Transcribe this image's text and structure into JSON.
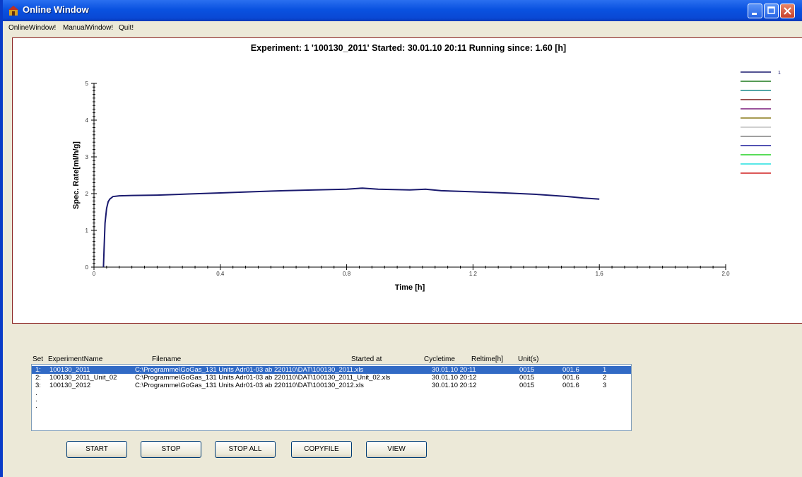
{
  "window": {
    "title": "Online Window"
  },
  "menu": [
    "OnlineWindow!",
    "ManualWindow!",
    "Quit!"
  ],
  "colors": {
    "titlebar": "#0a52e0",
    "selection": "#316ac5",
    "chart_border": "#8b2323",
    "series_1": "#1a1a6e"
  },
  "chart_data": {
    "type": "line",
    "title": "Experiment: 1 '100130_2011'  Started: 30.01.10 20:11   Running since: 1.60 [h]",
    "xlabel": "Time [h]",
    "ylabel": "Spec. Rate[ml/h/g]",
    "xlim": [
      0,
      2.0
    ],
    "ylim": [
      0,
      5
    ],
    "x_ticks": [
      "0",
      "0.4",
      "0.8",
      "1.2",
      "1.6",
      "2.0"
    ],
    "y_ticks": [
      "0",
      "1",
      "2",
      "3",
      "4",
      "5"
    ],
    "grid": false,
    "legend_position": "top-right",
    "legend": [
      {
        "label": "1",
        "color": "#1a1a6e"
      },
      {
        "label": "",
        "color": "#1e7a1e"
      },
      {
        "label": "",
        "color": "#1a8a8a"
      },
      {
        "label": "",
        "color": "#7a1a1a"
      },
      {
        "label": "",
        "color": "#7a1a7a"
      },
      {
        "label": "",
        "color": "#8a7a1a"
      },
      {
        "label": "",
        "color": "#c0c0c0"
      },
      {
        "label": "",
        "color": "#808080"
      },
      {
        "label": "",
        "color": "#1a1a9a"
      },
      {
        "label": "",
        "color": "#22d022"
      },
      {
        "label": "",
        "color": "#22e0e0"
      },
      {
        "label": "",
        "color": "#d02020"
      }
    ],
    "series": [
      {
        "name": "1",
        "x": [
          0.03,
          0.032,
          0.035,
          0.04,
          0.045,
          0.05,
          0.06,
          0.08,
          0.12,
          0.2,
          0.3,
          0.4,
          0.5,
          0.6,
          0.7,
          0.8,
          0.85,
          0.9,
          1.0,
          1.05,
          1.1,
          1.2,
          1.3,
          1.4,
          1.5,
          1.55,
          1.6
        ],
        "y": [
          0.0,
          0.5,
          1.2,
          1.6,
          1.78,
          1.85,
          1.92,
          1.94,
          1.95,
          1.96,
          1.99,
          2.02,
          2.05,
          2.08,
          2.1,
          2.12,
          2.15,
          2.12,
          2.1,
          2.12,
          2.08,
          2.05,
          2.02,
          1.98,
          1.92,
          1.88,
          1.85
        ]
      }
    ]
  },
  "list": {
    "headers": [
      "Set",
      "ExperimentName",
      "Filename",
      "Started at",
      "Cycletime",
      "Reltime[h]",
      "Unit(s)"
    ],
    "rows": [
      {
        "set": "1:",
        "name": "100130_2011",
        "file": "C:\\Programme\\GoGas_131 Units Adr01-03 ab 220110\\DAT\\100130_2011.xls",
        "started": "30.01.10  20:11",
        "cycle": "0015",
        "rel": "001.6",
        "unit": "1"
      },
      {
        "set": "2:",
        "name": "100130_2011_Unit_02",
        "file": "C:\\Programme\\GoGas_131 Units Adr01-03 ab 220110\\DAT\\100130_2011_Unit_02.xls",
        "started": "30.01.10  20:12",
        "cycle": "0015",
        "rel": "001.6",
        "unit": "2"
      },
      {
        "set": "3:",
        "name": "100130_2012",
        "file": "C:\\Programme\\GoGas_131 Units Adr01-03 ab 220110\\DAT\\100130_2012.xls",
        "started": "30.01.10  20:12",
        "cycle": "0015",
        "rel": "001.6",
        "unit": "3"
      }
    ],
    "extra_rows": [
      ".",
      ".",
      "."
    ]
  },
  "buttons": [
    "START",
    "STOP",
    "STOP ALL",
    "COPYFILE",
    "VIEW"
  ]
}
